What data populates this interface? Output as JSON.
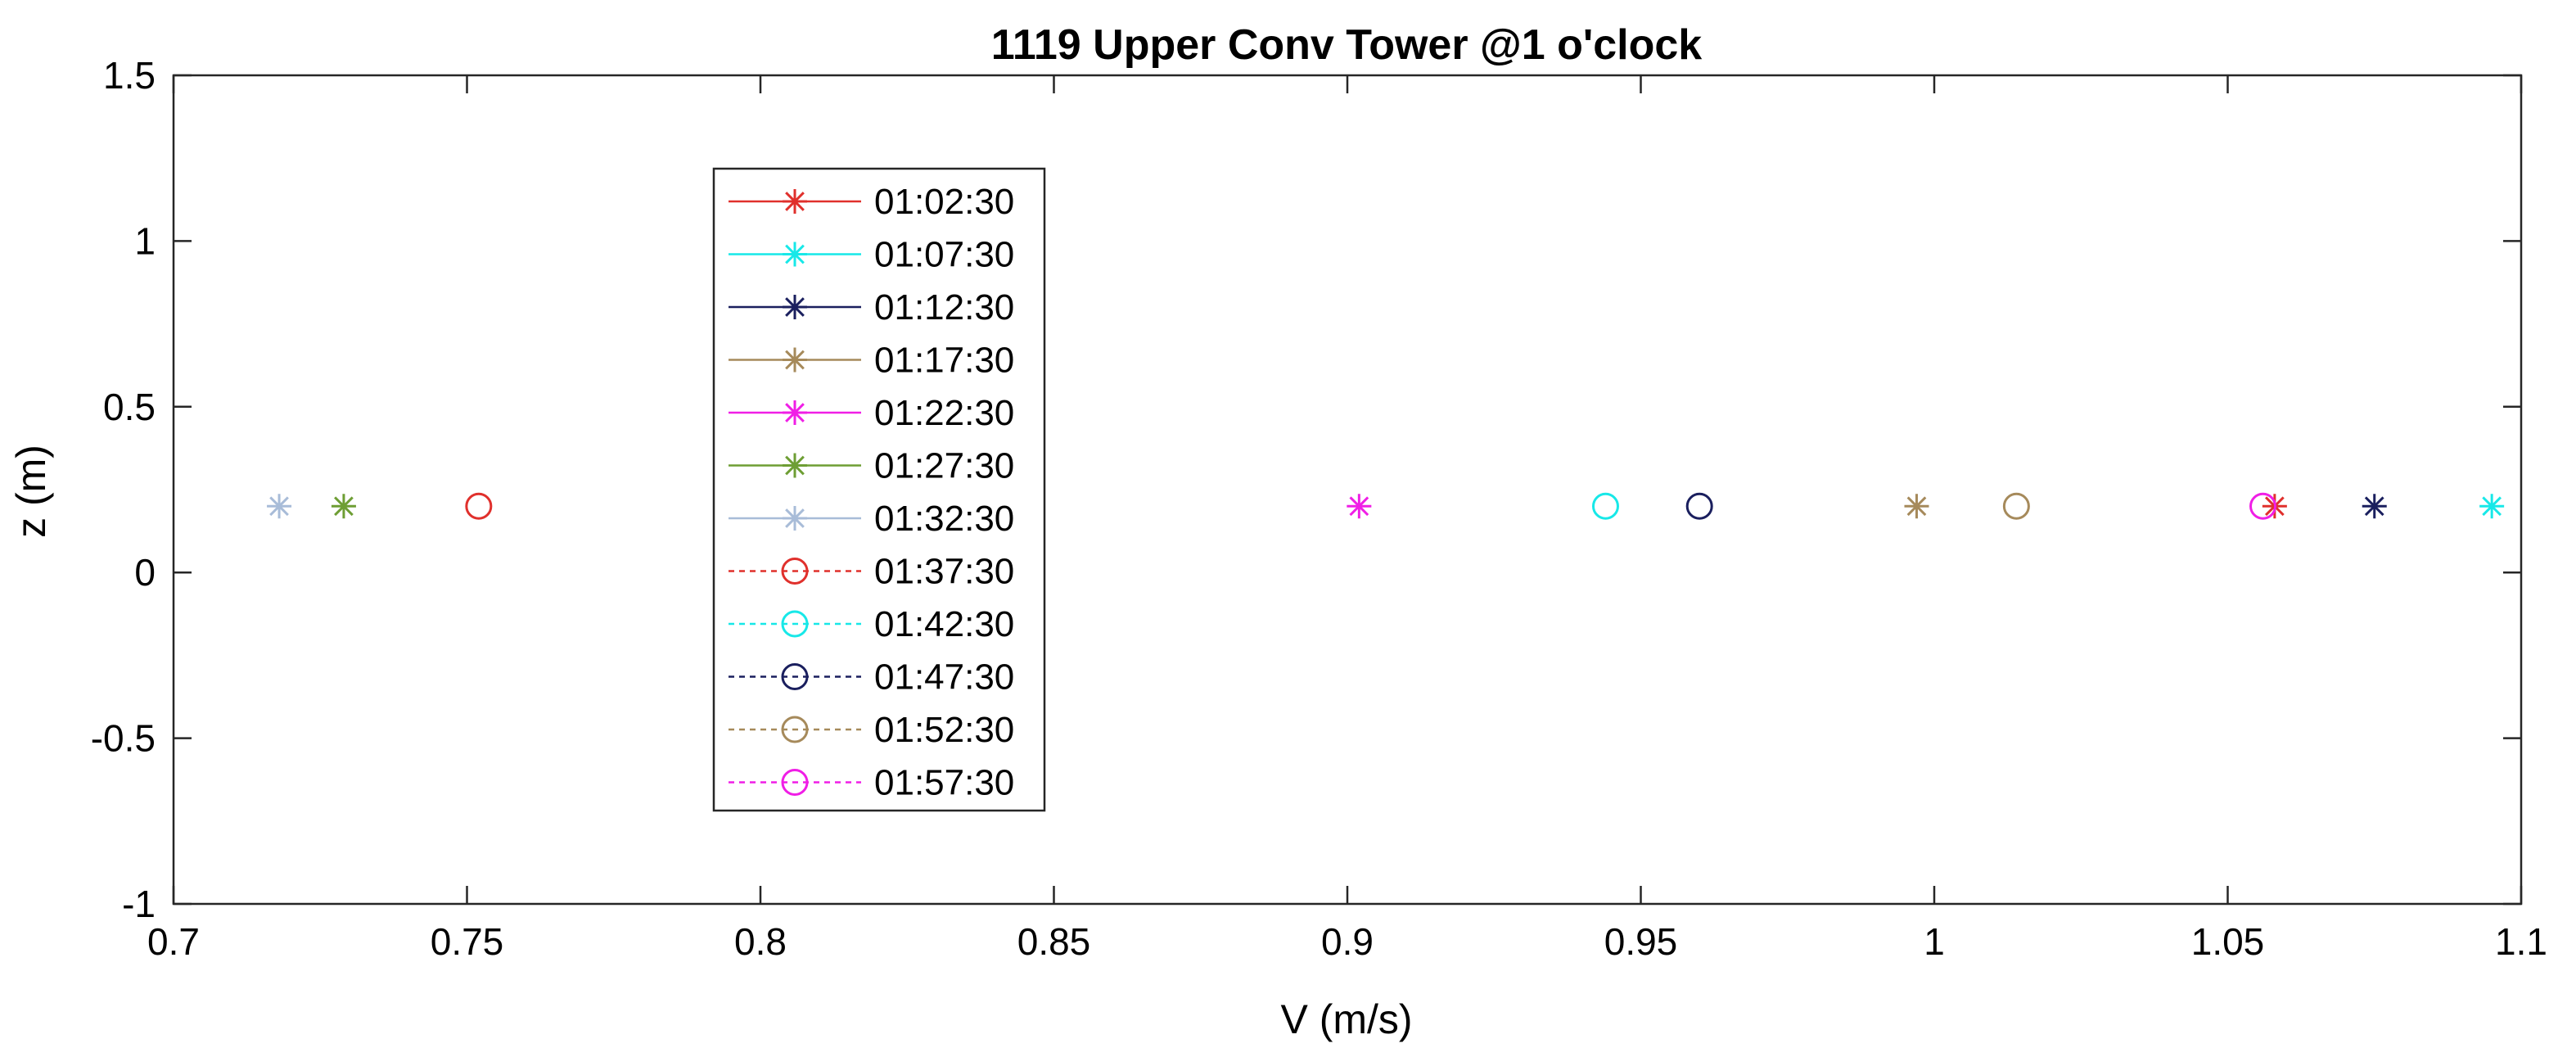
{
  "chart_data": {
    "type": "scatter",
    "title": "1119 Upper Conv Tower @1 o'clock",
    "xlabel": "V (m/s)",
    "ylabel": "z (m)",
    "xlim": [
      0.7,
      1.1
    ],
    "ylim": [
      -1,
      1.5
    ],
    "xticks": [
      0.7,
      0.75,
      0.8,
      0.85,
      0.9,
      0.95,
      1,
      1.05,
      1.1
    ],
    "xtick_labels": [
      "0.7",
      "0.75",
      "0.8",
      "0.85",
      "0.9",
      "0.95",
      "1",
      "1.05",
      "1.1"
    ],
    "yticks": [
      1.5,
      1,
      0.5,
      0,
      -0.5,
      -1
    ],
    "ytick_labels": [
      "1.5",
      "1",
      "0.5",
      "0",
      "-0.5",
      "-1"
    ],
    "grid": false,
    "legend_position": "upper-left",
    "series": [
      {
        "name": "01:02:30",
        "marker": "asterisk",
        "line": "solid",
        "color": "#e0302c",
        "x": [
          1.058
        ],
        "y": [
          0.2
        ]
      },
      {
        "name": "01:07:30",
        "marker": "asterisk",
        "line": "solid",
        "color": "#17e8e8",
        "x": [
          1.095
        ],
        "y": [
          0.2
        ]
      },
      {
        "name": "01:12:30",
        "marker": "asterisk",
        "line": "solid",
        "color": "#1a1f5e",
        "x": [
          1.075
        ],
        "y": [
          0.2
        ]
      },
      {
        "name": "01:17:30",
        "marker": "asterisk",
        "line": "solid",
        "color": "#a68a5b",
        "x": [
          0.997
        ],
        "y": [
          0.2
        ]
      },
      {
        "name": "01:22:30",
        "marker": "asterisk",
        "line": "solid",
        "color": "#f01ee6",
        "x": [
          0.902
        ],
        "y": [
          0.2
        ]
      },
      {
        "name": "01:27:30",
        "marker": "asterisk",
        "line": "solid",
        "color": "#6e9e34",
        "x": [
          0.729
        ],
        "y": [
          0.2
        ]
      },
      {
        "name": "01:32:30",
        "marker": "asterisk",
        "line": "solid",
        "color": "#a8bcd8",
        "x": [
          0.718
        ],
        "y": [
          0.2
        ]
      },
      {
        "name": "01:37:30",
        "marker": "circle",
        "line": "dashed",
        "color": "#e0302c",
        "x": [
          0.752
        ],
        "y": [
          0.2
        ]
      },
      {
        "name": "01:42:30",
        "marker": "circle",
        "line": "dashed",
        "color": "#17e8e8",
        "x": [
          0.944
        ],
        "y": [
          0.2
        ]
      },
      {
        "name": "01:47:30",
        "marker": "circle",
        "line": "dashed",
        "color": "#1a1f5e",
        "x": [
          0.96
        ],
        "y": [
          0.2
        ]
      },
      {
        "name": "01:52:30",
        "marker": "circle",
        "line": "dashed",
        "color": "#a68a5b",
        "x": [
          1.014
        ],
        "y": [
          0.2
        ]
      },
      {
        "name": "01:57:30",
        "marker": "circle",
        "line": "dashed",
        "color": "#f01ee6",
        "x": [
          1.056
        ],
        "y": [
          0.2
        ]
      }
    ]
  }
}
